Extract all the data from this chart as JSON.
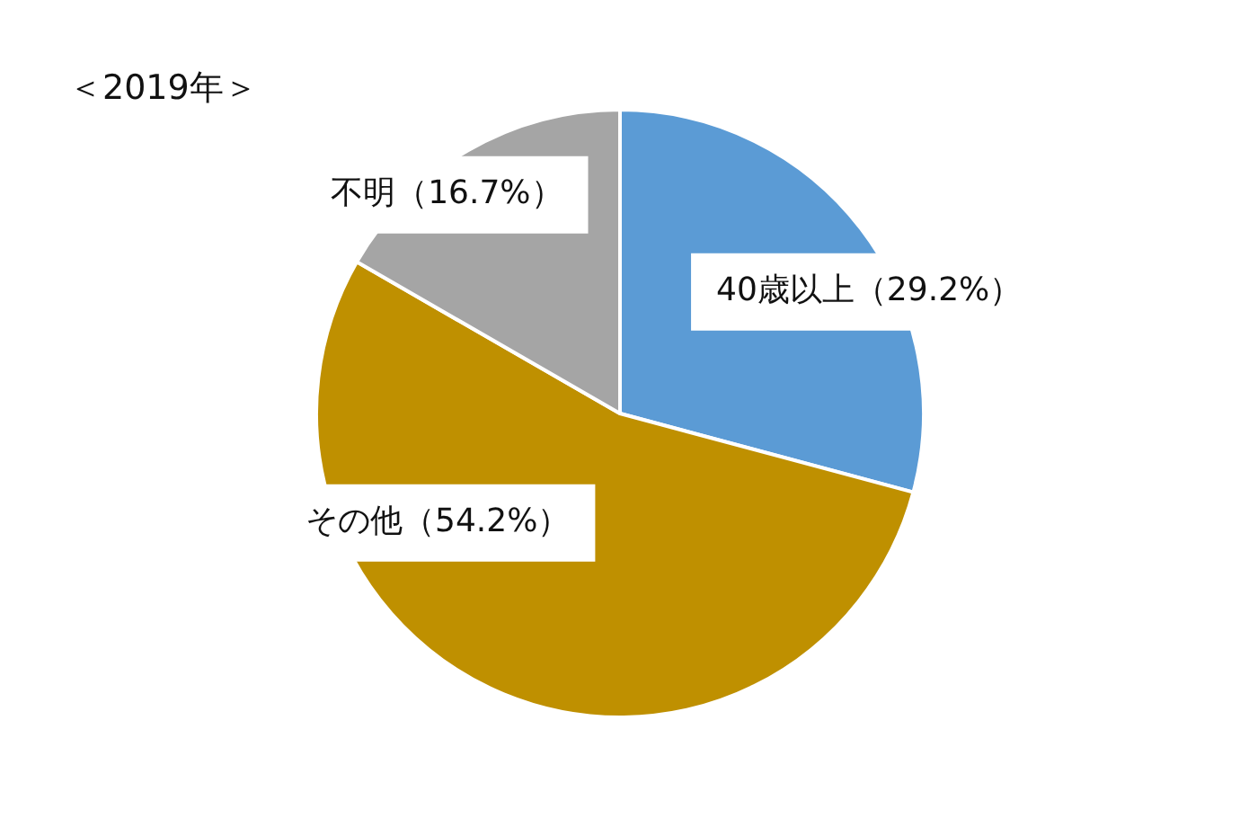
{
  "chart_data": {
    "type": "pie",
    "title": "＜2019年＞",
    "categories": [
      "40歳以上",
      "その他",
      "不明"
    ],
    "values": [
      29.2,
      54.2,
      16.7
    ],
    "colors": [
      "#5b9bd5",
      "#bf9000",
      "#a5a5a5"
    ],
    "value_labels": [
      "（29.2%）",
      "（54.2%）",
      "（16.7%）"
    ]
  }
}
